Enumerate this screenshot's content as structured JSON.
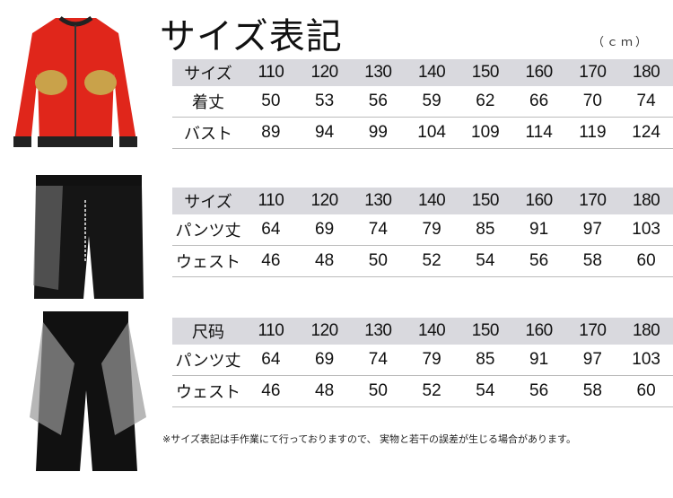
{
  "title": "サイズ表記",
  "unit": "（ｃｍ）",
  "tables": [
    {
      "header": {
        "label": "サイズ",
        "sizes": [
          "110",
          "120",
          "130",
          "140",
          "150",
          "160",
          "170",
          "180"
        ]
      },
      "rows": [
        {
          "label": "着丈",
          "values": [
            "50",
            "53",
            "56",
            "59",
            "62",
            "66",
            "70",
            "74"
          ]
        },
        {
          "label": "バスト",
          "values": [
            "89",
            "94",
            "99",
            "104",
            "109",
            "114",
            "119",
            "124"
          ]
        }
      ]
    },
    {
      "header": {
        "label": "サイズ",
        "sizes": [
          "110",
          "120",
          "130",
          "140",
          "150",
          "160",
          "170",
          "180"
        ]
      },
      "rows": [
        {
          "label": "パンツ丈",
          "values": [
            "64",
            "69",
            "74",
            "79",
            "85",
            "91",
            "97",
            "103"
          ]
        },
        {
          "label": "ウェスト",
          "values": [
            "46",
            "48",
            "50",
            "52",
            "54",
            "56",
            "58",
            "60"
          ]
        }
      ]
    },
    {
      "header": {
        "label": "尺码",
        "sizes": [
          "110",
          "120",
          "130",
          "140",
          "150",
          "160",
          "170",
          "180"
        ]
      },
      "rows": [
        {
          "label": "パンツ丈",
          "values": [
            "64",
            "69",
            "74",
            "79",
            "85",
            "91",
            "97",
            "103"
          ]
        },
        {
          "label": "ウェスト",
          "values": [
            "46",
            "48",
            "50",
            "52",
            "54",
            "56",
            "58",
            "60"
          ]
        }
      ]
    }
  ],
  "note": "※サイズ表記は手作業にて行っておりますので、 実物と若干の誤差が生じる場合があります。",
  "colors": {
    "header_bg": "#d9d9de",
    "jacket": "#e0261b"
  }
}
